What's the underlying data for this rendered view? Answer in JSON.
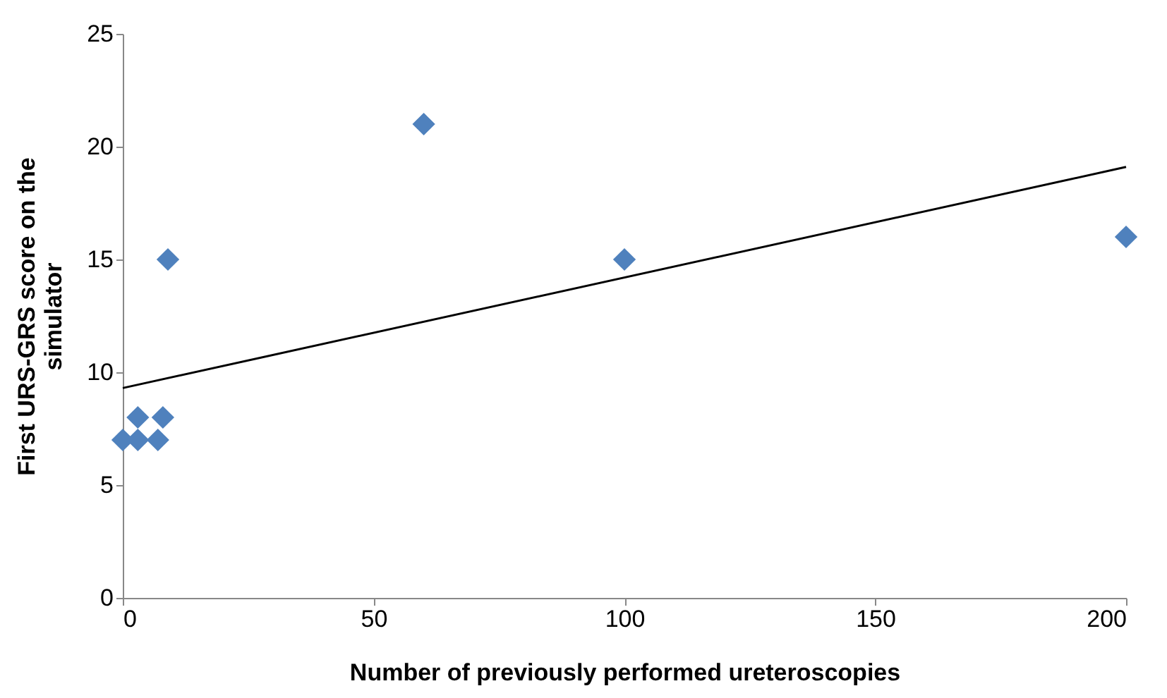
{
  "chart_data": {
    "type": "scatter",
    "xlabel": "Number of previously performed ureteroscopies",
    "ylabel": "First URS-GRS score on the simulator",
    "series": [
      {
        "color": "#4f81bd",
        "marker": "diamond",
        "x": [
          0,
          3,
          3,
          7,
          8,
          9,
          60,
          100,
          200
        ],
        "values": [
          7,
          8,
          7,
          7,
          8,
          15,
          21,
          15,
          16
        ]
      },
      {
        "type": "line",
        "color": "#000000",
        "x": [
          0,
          200
        ],
        "values": [
          9.3,
          19.1
        ]
      }
    ],
    "xlim": [
      0,
      200
    ],
    "xticks": [
      0,
      50,
      100,
      150,
      200
    ],
    "ylim": [
      0,
      25
    ],
    "yticks": [
      0,
      5,
      10,
      15,
      20,
      25
    ],
    "grid": false
  }
}
